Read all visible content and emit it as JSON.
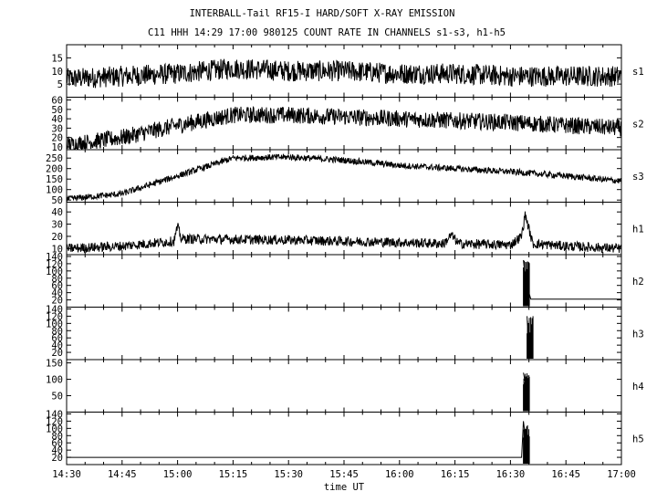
{
  "title_line1": "INTERBALL-Tail RF15-I HARD/SOFT X-RAY EMISSION",
  "title_line2": "C11 HHH 14:29 17:00 980125  COUNT RATE IN CHANNELS s1-s3, h1-h5",
  "xlabel": "time UT",
  "x_ticks": [
    "14:30",
    "14:45",
    "15:00",
    "15:15",
    "15:30",
    "15:45",
    "16:00",
    "16:15",
    "16:30",
    "16:45",
    "17:00"
  ],
  "chart_data": {
    "type": "line",
    "x_range": [
      "14:30",
      "17:00"
    ],
    "x_unit": "time UT",
    "grid": true,
    "series": [
      {
        "name": "s1",
        "ylim": [
          0,
          20
        ],
        "yticks": [
          5,
          10,
          15
        ],
        "x": [
          "14:30",
          "14:45",
          "15:00",
          "15:15",
          "15:30",
          "15:45",
          "16:00",
          "16:15",
          "16:30",
          "16:45",
          "17:00"
        ],
        "y": [
          7,
          8,
          9,
          11,
          10,
          10,
          9,
          9,
          8,
          8,
          8
        ],
        "noise": 4
      },
      {
        "name": "s2",
        "ylim": [
          7,
          63
        ],
        "yticks": [
          10,
          20,
          30,
          40,
          50,
          60
        ],
        "x": [
          "14:30",
          "14:45",
          "15:00",
          "15:15",
          "15:30",
          "15:45",
          "16:00",
          "16:15",
          "16:30",
          "16:45",
          "17:00"
        ],
        "y": [
          12,
          20,
          33,
          44,
          44,
          42,
          40,
          38,
          36,
          33,
          30
        ],
        "noise": 9
      },
      {
        "name": "s3",
        "ylim": [
          40,
          290
        ],
        "yticks": [
          50,
          100,
          150,
          200,
          250
        ],
        "x": [
          "14:30",
          "14:45",
          "15:00",
          "15:15",
          "15:30",
          "15:45",
          "16:00",
          "16:15",
          "16:30",
          "16:45",
          "17:00"
        ],
        "y": [
          55,
          80,
          165,
          250,
          255,
          240,
          215,
          200,
          185,
          165,
          140
        ],
        "noise": 15
      },
      {
        "name": "h1",
        "ylim": [
          5,
          48
        ],
        "yticks": [
          10,
          20,
          30,
          40
        ],
        "x": [
          "14:30",
          "14:45",
          "14:59",
          "15:00",
          "15:01",
          "15:30",
          "16:00",
          "16:12",
          "16:14",
          "16:16",
          "16:30",
          "16:33",
          "16:34",
          "16:36",
          "16:45",
          "17:00"
        ],
        "y": [
          10,
          12,
          16,
          28,
          18,
          17,
          15,
          14,
          21,
          14,
          13,
          20,
          38,
          14,
          12,
          10
        ],
        "noise": 4
      },
      {
        "name": "h2",
        "ylim": [
          0,
          145
        ],
        "yticks": [
          20,
          40,
          60,
          80,
          100,
          120,
          140
        ],
        "x": [
          "14:30",
          "16:33",
          "16:33.5",
          "16:34",
          "16:35",
          "16:35.5",
          "17:00"
        ],
        "y": [
          null,
          null,
          130,
          80,
          40,
          22,
          22
        ],
        "noise": 0
      },
      {
        "name": "h3",
        "ylim": [
          0,
          145
        ],
        "yticks": [
          20,
          40,
          60,
          80,
          100,
          120,
          140
        ],
        "x": [
          "14:30",
          "16:34",
          "16:34.5",
          "16:35",
          "17:00"
        ],
        "y": [
          null,
          null,
          120,
          0,
          null
        ],
        "noise": 0
      },
      {
        "name": "h4",
        "ylim": [
          0,
          160
        ],
        "yticks": [
          50,
          100,
          150
        ],
        "x": [
          "14:30",
          "16:33",
          "16:33.5",
          "16:34",
          "16:35",
          "17:00"
        ],
        "y": [
          null,
          null,
          120,
          90,
          0,
          null
        ],
        "noise": 0
      },
      {
        "name": "h5",
        "ylim": [
          0,
          145
        ],
        "yticks": [
          20,
          40,
          60,
          80,
          100,
          120,
          140
        ],
        "x": [
          "14:30",
          "16:33",
          "16:33.5",
          "16:34",
          "16:35",
          "17:00"
        ],
        "y": [
          20,
          20,
          120,
          80,
          0,
          null
        ],
        "noise": 0
      }
    ]
  }
}
